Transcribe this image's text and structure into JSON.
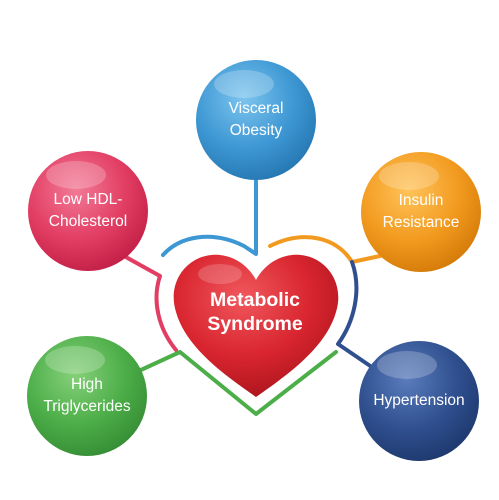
{
  "center": {
    "line1": "Metabolic",
    "line2": "Syndrome",
    "color": "#d9252f"
  },
  "factors": {
    "visceral_obesity": {
      "line1": "Visceral",
      "line2": "Obesity",
      "color": "#3d97d3"
    },
    "insulin_resistance": {
      "line1": "Insulin",
      "line2": "Resistance",
      "color": "#f29a1f"
    },
    "low_hdl": {
      "line1": "Low HDL-",
      "line2": "Cholesterol",
      "color": "#e23d63"
    },
    "triglycerides": {
      "line1": "High",
      "line2": "Triglycerides",
      "color": "#4cae48"
    },
    "hypertension": {
      "line1": "Hypertension",
      "color": "#2f4f8e"
    }
  }
}
